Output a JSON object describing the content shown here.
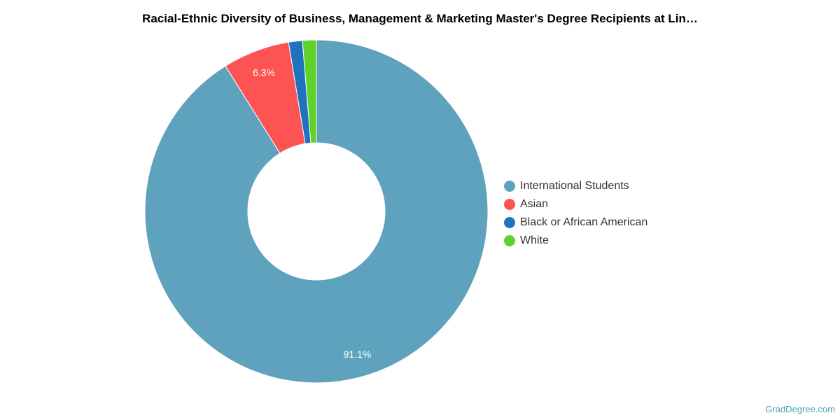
{
  "chart_data": {
    "type": "pie",
    "title": "Racial-Ethnic Diversity of Business, Management & Marketing Master's Degree Recipients at Lin…",
    "donut": true,
    "legend_position": "right",
    "slices": [
      {
        "name": "International Students",
        "value": 91.1,
        "label": "91.1%",
        "color": "#5fa2be"
      },
      {
        "name": "Asian",
        "value": 6.3,
        "label": "6.3%",
        "color": "#fd5353"
      },
      {
        "name": "Black or African American",
        "value": 1.3,
        "label": "",
        "color": "#1f73be"
      },
      {
        "name": "White",
        "value": 1.3,
        "label": "",
        "color": "#5fd32c"
      }
    ]
  },
  "watermark": "GradDegree.com"
}
